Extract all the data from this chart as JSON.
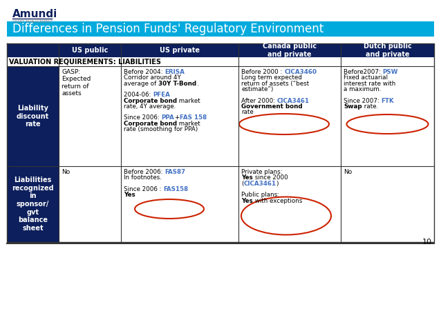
{
  "title": "Differences in Pension Funds' Regulatory Environment",
  "title_bg": "#00AADD",
  "title_color": "#FFFFFF",
  "brand": "Amundi",
  "page_num": "10",
  "bg_color": "#FFFFFF",
  "header_bg": "#0D1F5C",
  "header_color": "#FFFFFF",
  "section_bg": "#0D1F5C",
  "section_color": "#FFFFFF",
  "link_color": "#4472C4",
  "red_link": "#CC3333",
  "col_headers": [
    "",
    "US public",
    "US private",
    "Canada public\nand private",
    "Dutch public\nand private"
  ],
  "section_row": "VALUATION REQUIREMENTS: LIABILITIES",
  "row1_label": "Liability\ndiscount\nrate",
  "row1_col1": "GASP:\nExpected\nreturn of\nassets",
  "row1_col2_parts": [
    {
      "text": "Before 2004: ",
      "style": "normal"
    },
    {
      "text": "ERISA",
      "style": "link"
    },
    {
      "text": "\nCorridor around 4Y\naverage of ",
      "style": "normal"
    },
    {
      "text": "30Y T-Bond",
      "style": "bold"
    },
    {
      "text": ".\n\n2004-06: ",
      "style": "normal"
    },
    {
      "text": "PFEA",
      "style": "link"
    },
    {
      "text": "\n",
      "style": "normal"
    },
    {
      "text": "Corporate bond",
      "style": "bold"
    },
    {
      "text": " market\nrate, 4Y average.\n\nSince 2006: ",
      "style": "normal"
    },
    {
      "text": "PPA",
      "style": "link"
    },
    {
      "text": "+",
      "style": "normal"
    },
    {
      "text": "FAS 158",
      "style": "link"
    },
    {
      "text": "\n",
      "style": "normal"
    },
    {
      "text": "Corporate bond",
      "style": "bold"
    },
    {
      "text": " market\nrate (smoothing for PPA)",
      "style": "normal"
    }
  ],
  "row1_col3_parts": [
    {
      "text": "Before 2000 : ",
      "style": "normal"
    },
    {
      "text": "CICA3460",
      "style": "link"
    },
    {
      "text": "\nLong term expected\nreturn of assets (“best\nestimate”)\n\nAfter 2000: ",
      "style": "normal"
    },
    {
      "text": "CICA3461",
      "style": "link"
    },
    {
      "text": "\n",
      "style": "normal"
    },
    {
      "text": "Government bond",
      "style": "bold"
    },
    {
      "text": "\nrate",
      "style": "normal"
    }
  ],
  "row1_col4_parts": [
    {
      "text": "Before2007: ",
      "style": "normal"
    },
    {
      "text": "PSW",
      "style": "link"
    },
    {
      "text": "\nFixed actuarial\ninterest rate with\na maximum.\n\nSince 2007: ",
      "style": "normal"
    },
    {
      "text": "FTK",
      "style": "link"
    },
    {
      "text": "\n",
      "style": "normal"
    },
    {
      "text": "Swap",
      "style": "bold"
    },
    {
      "text": " rate.",
      "style": "normal"
    }
  ],
  "row2_label": "Liabilities\nrecognized\nin\nsponsor/\ngvt\nbalance\nsheet",
  "row2_col1": "No",
  "row2_col2_parts": [
    {
      "text": "Before 2006: ",
      "style": "normal"
    },
    {
      "text": "FAS87",
      "style": "link"
    },
    {
      "text": "\nIn footnotes.\n\nSince 2006 : ",
      "style": "normal"
    },
    {
      "text": "FAS158",
      "style": "link"
    },
    {
      "text": "\n",
      "style": "normal"
    },
    {
      "text": "Yes",
      "style": "bold"
    }
  ],
  "row2_col3_parts": [
    {
      "text": "Private plans:\n",
      "style": "normal"
    },
    {
      "text": "Yes",
      "style": "bold"
    },
    {
      "text": " since 2000\n(",
      "style": "normal"
    },
    {
      "text": "CICA3461",
      "style": "link"
    },
    {
      "text": ")\n\nPublic plans:\n",
      "style": "normal"
    },
    {
      "text": "Yes",
      "style": "bold"
    },
    {
      "text": " with exceptions",
      "style": "normal"
    }
  ],
  "row2_col4": "No"
}
